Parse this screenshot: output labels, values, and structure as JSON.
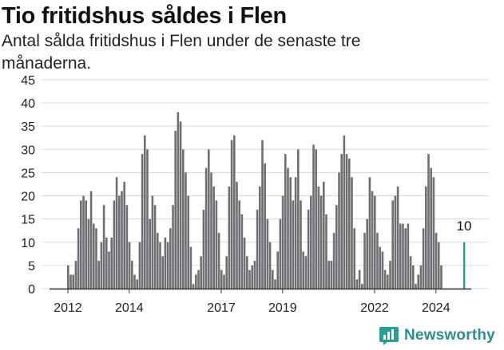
{
  "title": "Tio fritidshus såldes i Flen",
  "subtitle": "Antal sålda fritidshus i Flen under de senaste tre månaderna.",
  "brand": {
    "name": "Newsworthy",
    "icon": "bar-chart-icon"
  },
  "colors": {
    "bar": "#6f6f73",
    "highlight": "#2a9d96",
    "grid": "#d9d9d9",
    "axis": "#333333",
    "brand": "#2a8f8c"
  },
  "chart_data": {
    "type": "bar",
    "title": "Tio fritidshus såldes i Flen",
    "xlabel": "",
    "ylabel": "",
    "ylim": [
      0,
      45
    ],
    "yticks": [
      0,
      5,
      10,
      15,
      20,
      25,
      30,
      35,
      40,
      45
    ],
    "x_tick_labels": [
      "2012",
      "2014",
      "2017",
      "2019",
      "2022",
      "2024"
    ],
    "x_tick_index": [
      0,
      24,
      60,
      84,
      120,
      144
    ],
    "start_label": "2012-01",
    "frequency": "monthly",
    "grid": true,
    "highlight_last": true,
    "annotation": {
      "label": "10",
      "index": 155
    },
    "values": [
      5,
      3,
      3,
      6,
      13,
      19,
      20,
      19,
      15,
      21,
      14,
      13,
      6,
      10,
      18,
      11,
      8,
      11,
      19,
      24,
      20,
      21,
      23,
      18,
      10,
      6,
      3,
      2,
      10,
      29,
      33,
      30,
      15,
      20,
      18,
      12,
      10,
      7,
      11,
      10,
      13,
      18,
      34,
      38,
      36,
      30,
      25,
      20,
      9,
      1,
      3,
      4,
      7,
      17,
      26,
      30,
      25,
      22,
      19,
      12,
      4,
      3,
      7,
      22,
      32,
      33,
      23,
      19,
      16,
      11,
      7,
      4,
      5,
      6,
      17,
      22,
      32,
      27,
      15,
      10,
      4,
      2,
      8,
      15,
      20,
      29,
      26,
      24,
      19,
      24,
      30,
      19,
      8,
      7,
      17,
      20,
      31,
      30,
      22,
      20,
      23,
      16,
      6,
      6,
      12,
      18,
      25,
      29,
      33,
      29,
      28,
      24,
      13,
      2,
      4,
      1,
      12,
      15,
      24,
      21,
      20,
      12,
      9,
      8,
      4,
      3,
      6,
      19,
      20,
      22,
      14,
      14,
      13,
      14,
      7,
      5,
      1,
      3,
      5,
      13,
      22,
      29,
      26,
      24,
      12,
      10,
      5,
      0,
      0,
      0,
      0,
      0,
      0,
      0,
      0,
      10
    ]
  }
}
